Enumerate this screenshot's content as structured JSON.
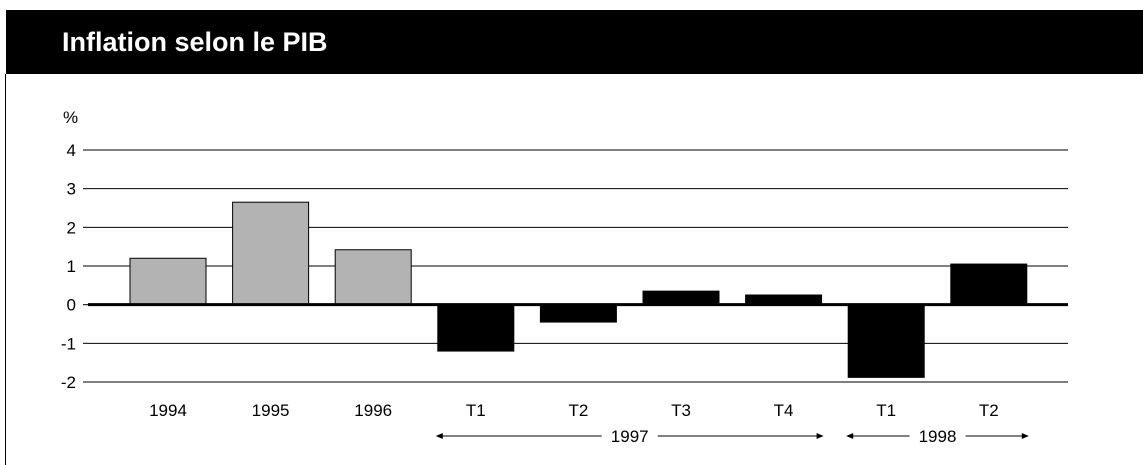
{
  "title": "Inflation selon le PIB",
  "chart_data": {
    "type": "bar",
    "title": "Inflation selon le PIB",
    "ylabel": "%",
    "xlabel": "",
    "ylim": [
      -2,
      4
    ],
    "yticks": [
      4,
      3,
      2,
      1,
      0,
      -1,
      -2
    ],
    "yticks_labels": [
      "4",
      "3",
      "2",
      "1",
      "0",
      "-1",
      "-2"
    ],
    "grid": true,
    "categories": [
      "1994",
      "1995",
      "1996",
      "T1",
      "T2",
      "T3",
      "T4",
      "T1",
      "T2"
    ],
    "values": [
      1.2,
      2.65,
      1.42,
      -1.2,
      -0.45,
      0.35,
      0.25,
      -1.88,
      1.05
    ],
    "bar_colors": [
      "#b3b3b3",
      "#b3b3b3",
      "#b3b3b3",
      "#000000",
      "#000000",
      "#000000",
      "#000000",
      "#000000",
      "#000000"
    ],
    "groups": [
      {
        "label": "1997",
        "from": 3,
        "to": 6
      },
      {
        "label": "1998",
        "from": 7,
        "to": 8
      }
    ]
  }
}
